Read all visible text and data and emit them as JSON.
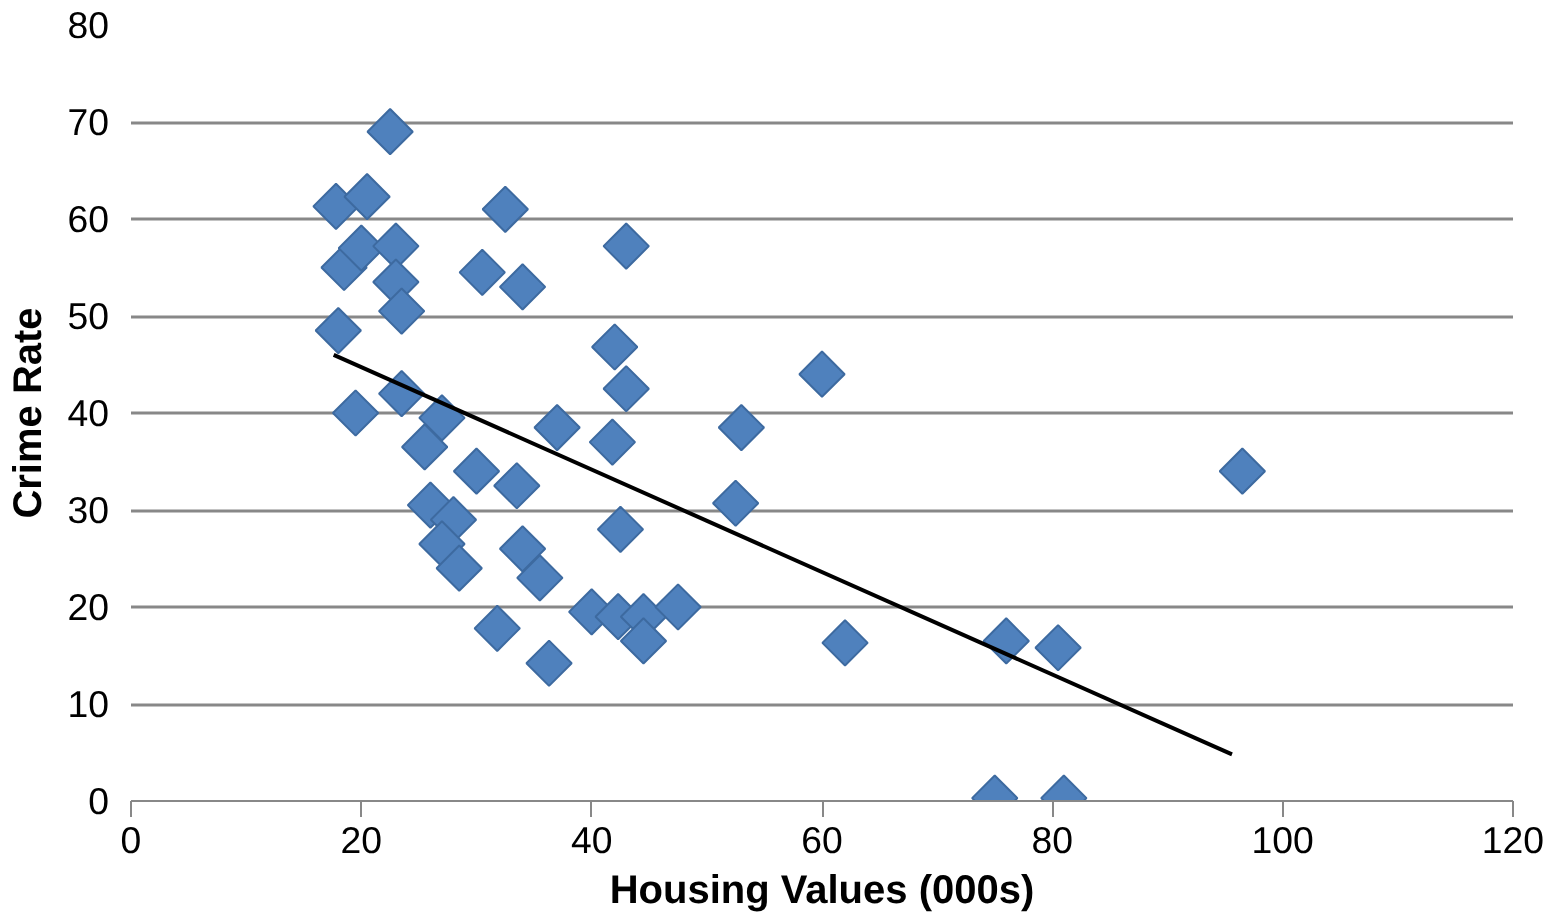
{
  "chart_data": {
    "type": "scatter",
    "xlabel": "Housing Values (000s)",
    "ylabel": "Crime Rate",
    "xlim": [
      0,
      120
    ],
    "ylim": [
      0,
      80
    ],
    "xticks": [
      0,
      20,
      40,
      60,
      80,
      100,
      120
    ],
    "yticks": [
      0,
      10,
      20,
      30,
      40,
      50,
      60,
      70,
      80
    ],
    "grid": "y",
    "series": [
      {
        "marker": "diamond",
        "color": "#4f81bd",
        "x": [
          22.5,
          17.8,
          20.5,
          32.5,
          18.5,
          20,
          23,
          23,
          23.5,
          18,
          30.5,
          34,
          43,
          42,
          43,
          41.8,
          60,
          53,
          52.5,
          42.5,
          19.5,
          23.5,
          27,
          25.5,
          37,
          30,
          33.5,
          26,
          28,
          27,
          34,
          28.5,
          35.5,
          31.8,
          36.3,
          40,
          42.3,
          44.5,
          44.5,
          47.5,
          62,
          76,
          80.5,
          75,
          81,
          96.5
        ],
        "values": [
          69,
          61.3,
          62.3,
          61,
          55,
          57,
          57.2,
          53.5,
          50.5,
          48.5,
          54.5,
          53,
          57.2,
          46.8,
          42.5,
          37,
          44,
          38.5,
          30.7,
          28,
          40,
          42,
          39.5,
          36.5,
          38.5,
          34,
          32.5,
          30.5,
          29,
          26.5,
          26,
          24,
          23,
          17.8,
          14.2,
          19.5,
          19,
          19,
          16.5,
          20,
          16.3,
          16.5,
          15.8,
          0.3,
          0.3,
          34
        ]
      },
      {
        "type": "line",
        "color": "#000000",
        "x": [
          17.6,
          95.6
        ],
        "values": [
          46,
          4.8
        ]
      }
    ]
  }
}
